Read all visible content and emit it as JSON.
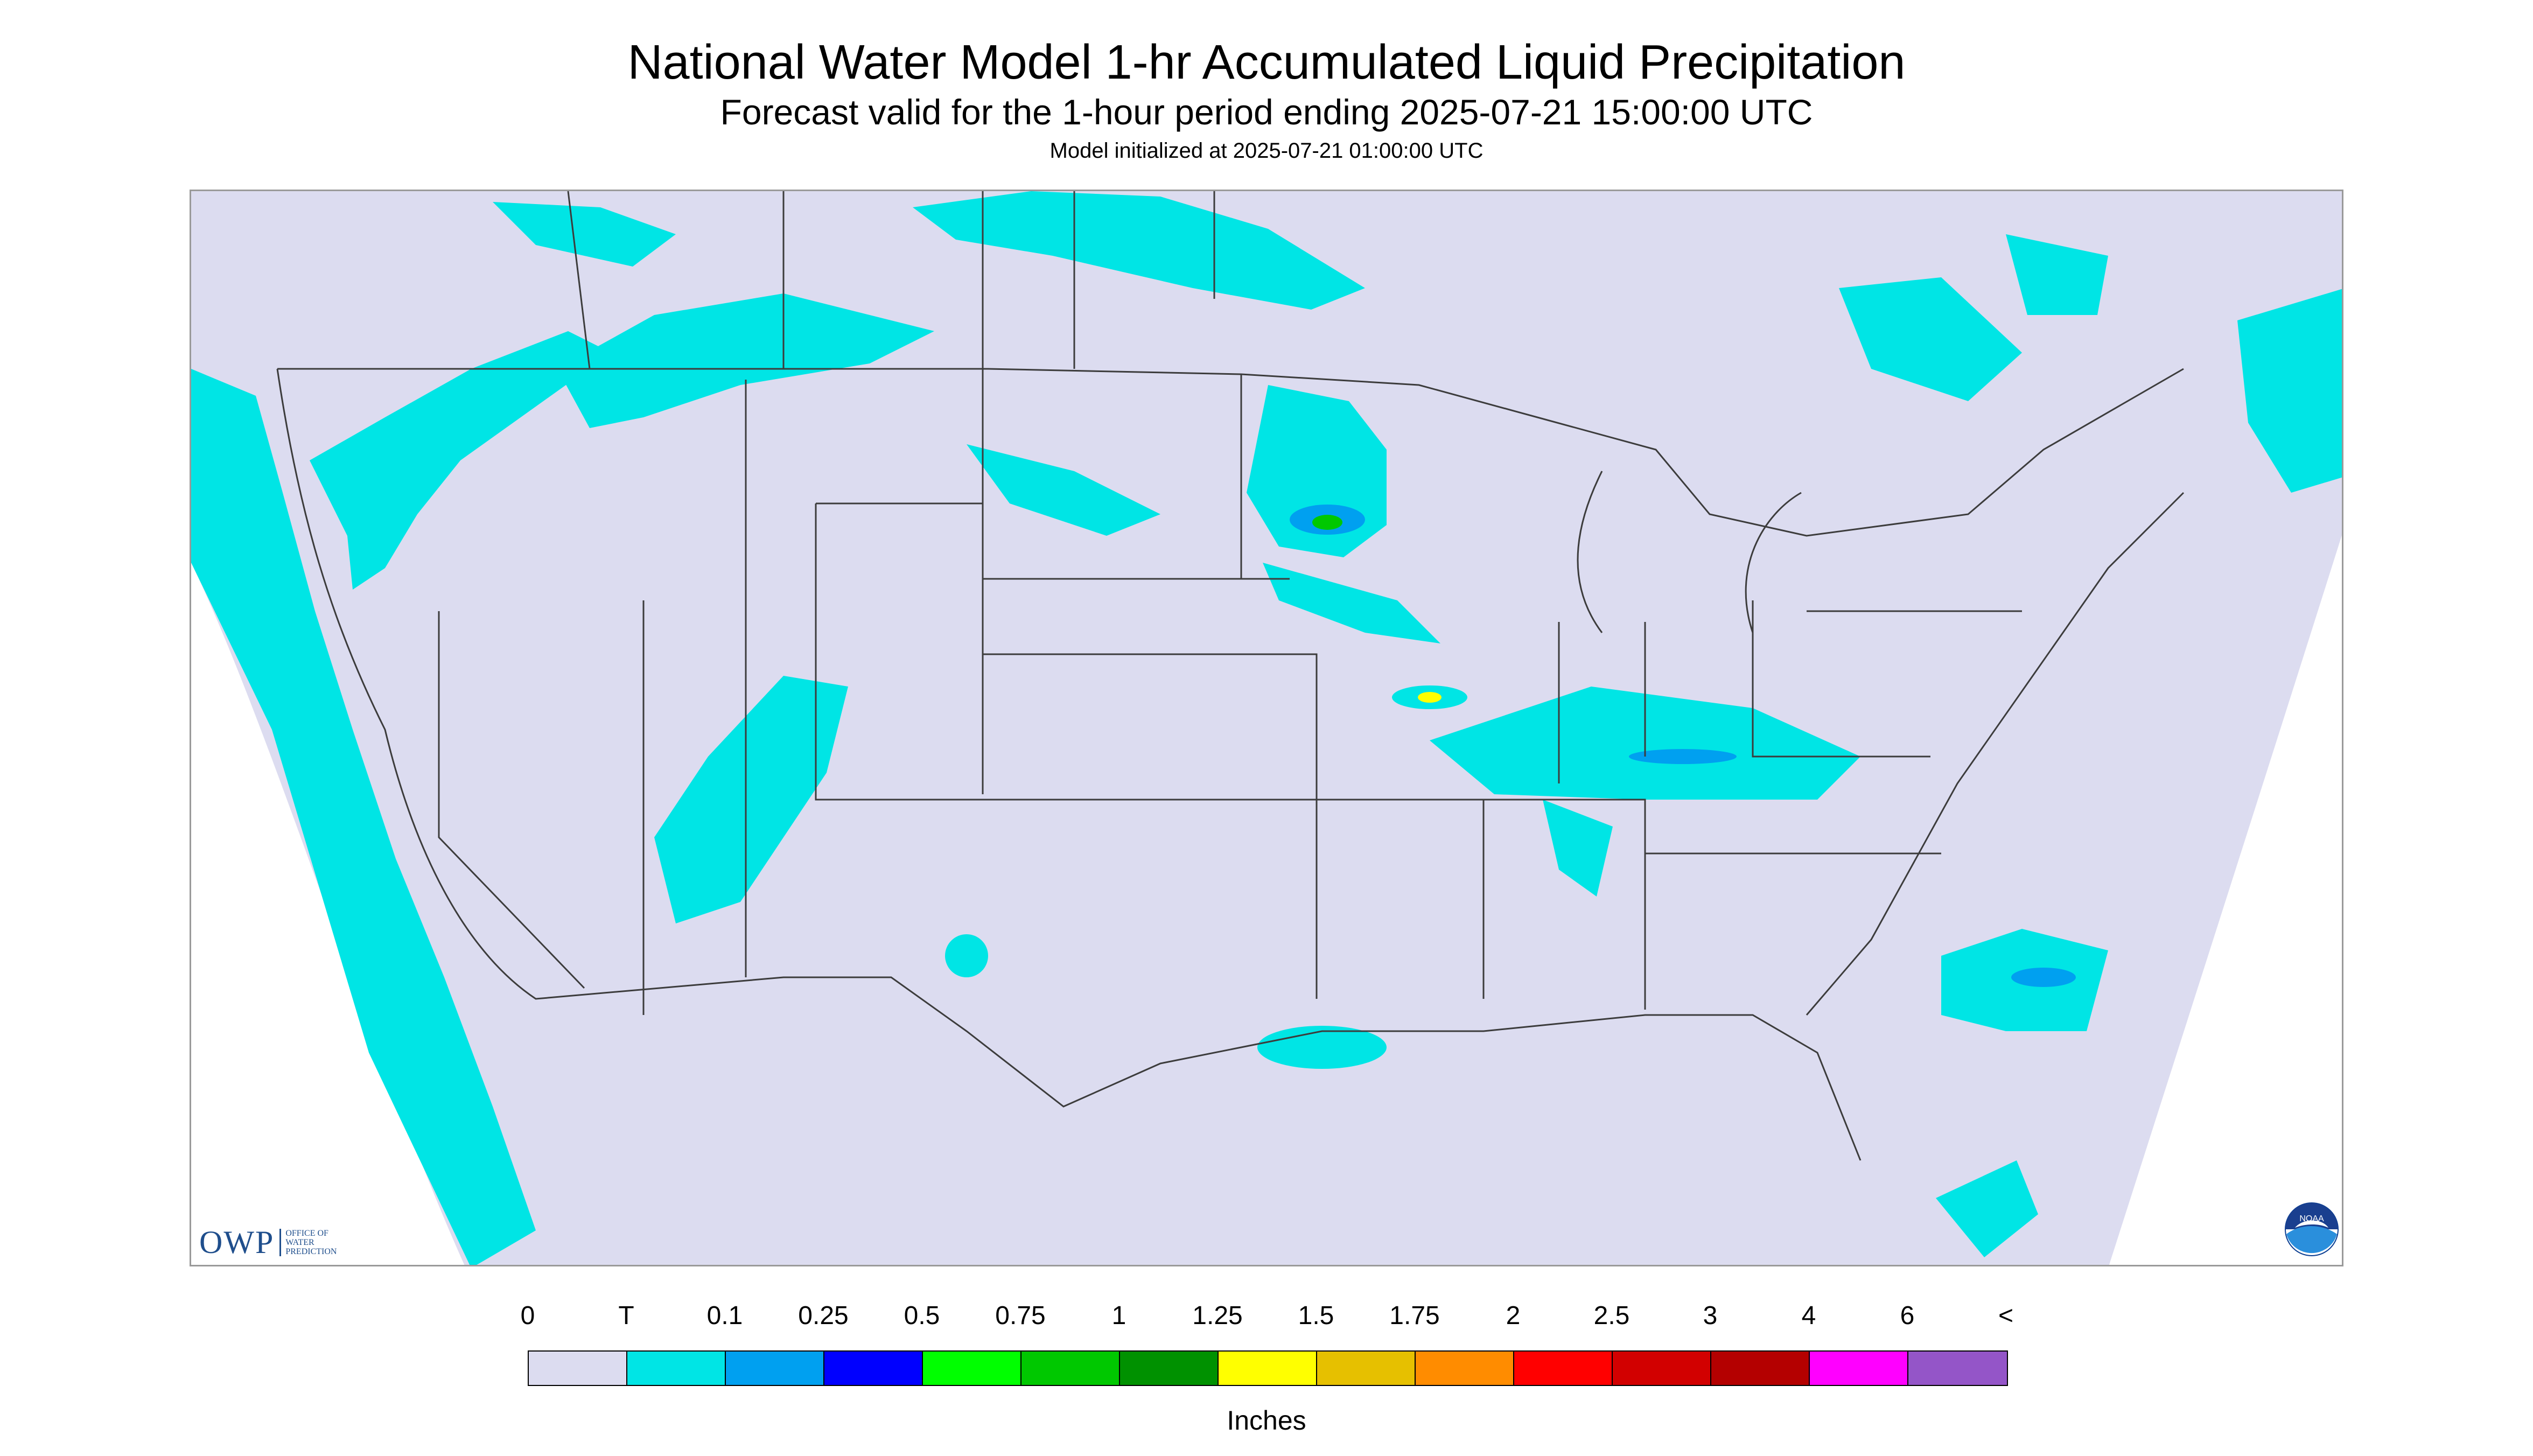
{
  "header": {
    "title": "National Water Model 1-hr Accumulated Liquid Precipitation",
    "subtitle": "Forecast valid for the 1-hour period ending 2025-07-21 15:00:00 UTC",
    "init": "Model initialized at 2025-07-21 01:00:00 UTC"
  },
  "colors": {
    "background_grid": "#dcdcf0",
    "outside_domain": "#ffffff",
    "trace": "#00e5e5",
    "low": "#00a0f0",
    "med": "#0000ff",
    "green": "#00c800",
    "yellow": "#ffff00",
    "border_lines": "#3c3c3c"
  },
  "legend": {
    "labels": [
      "0",
      "T",
      "0.1",
      "0.25",
      "0.5",
      "0.75",
      "1",
      "1.25",
      "1.5",
      "1.75",
      "2",
      "2.5",
      "3",
      "4",
      "6",
      "<"
    ],
    "colors": [
      "#dcdcf0",
      "#00e5e5",
      "#00a0f0",
      "#0000ff",
      "#00ff00",
      "#00c800",
      "#009100",
      "#ffff00",
      "#e6c000",
      "#ff8c00",
      "#ff0000",
      "#d20000",
      "#b40000",
      "#ff00ff",
      "#9455c8"
    ],
    "units": "Inches"
  },
  "logos": {
    "owp": "OWP",
    "owp_sub_1": "Office of",
    "owp_sub_2": "Water",
    "owp_sub_3": "Prediction",
    "noaa": "NOAA"
  }
}
